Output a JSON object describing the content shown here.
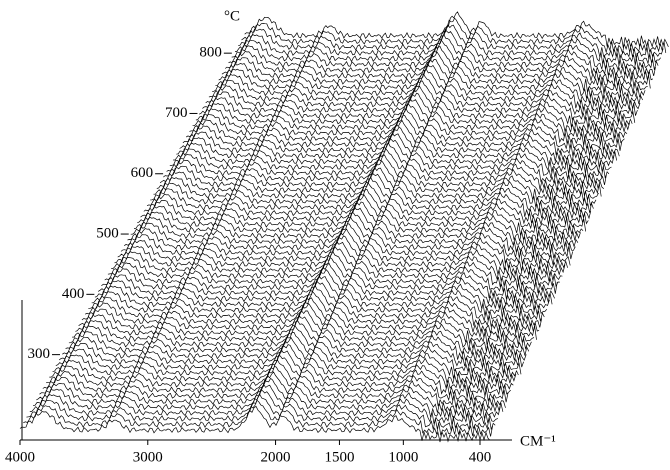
{
  "chart_data": {
    "type": "waterfall",
    "x_label": "CM⁻¹",
    "y_label": "°C",
    "xlim": [
      4000,
      400
    ],
    "xticks": [
      4000,
      3000,
      2000,
      1500,
      1000,
      400
    ],
    "ylim": [
      175,
      855
    ],
    "yticks": [
      300,
      400,
      500,
      600,
      700,
      800
    ],
    "color": "#000000"
  }
}
